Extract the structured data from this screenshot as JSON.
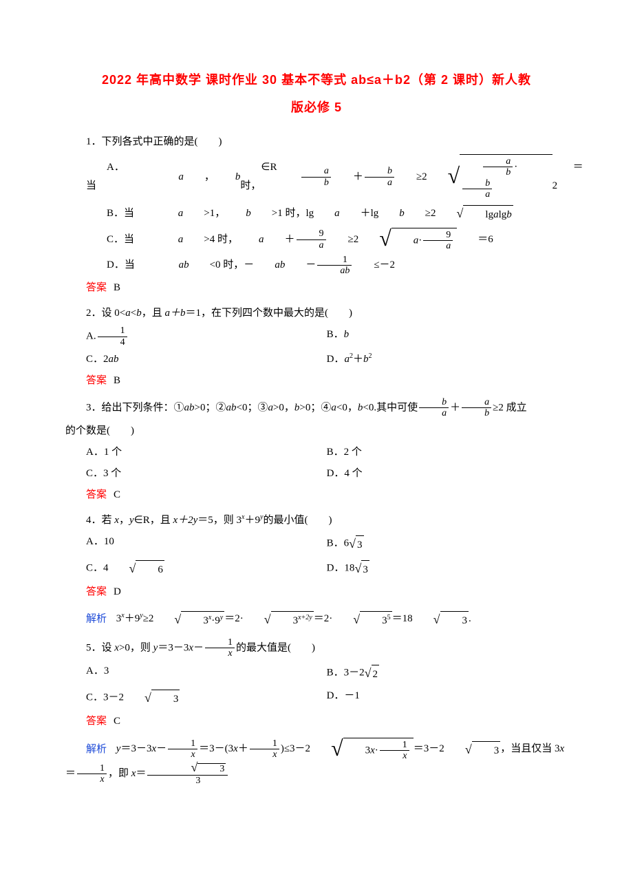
{
  "title_line1": "2022 年高中数学 课时作业 30 基本不等式 ab≤a＋b2（第 2 课时）新人教",
  "title_line2": "版必修 5",
  "q1": {
    "stem": "1．下列各式中正确的是(　　)",
    "optA_prefix": "A．当",
    "optA_ab": "a",
    "optA_b": "b",
    "optA_mid1": "∈R 时，",
    "optA_eq": "＝2",
    "optB_prefix": "B．当",
    "optB_a": "a",
    "optB_gt1": ">1，",
    "optB_b": "b",
    "optB_gt1b": ">1 时，lg",
    "optB_plus": "＋lg",
    "optB_ge": "≥2",
    "optB_sqrt": "lgalgb",
    "optC_prefix": "C．当",
    "optC_a": "a",
    "optC_gt4": ">4 时，",
    "optC_plus": "＋",
    "optC_ge": "≥2",
    "optC_eq": "＝6",
    "optD_prefix": "D．当",
    "optD_ab": "ab",
    "optD_lt0": "<0 时，－",
    "optD_minus": "－",
    "optD_le": "≤－2",
    "answer": "B"
  },
  "q2": {
    "stem_pre": "2．设 0<",
    "stem_a": "a",
    "stem_lt": "<",
    "stem_b": "b",
    "stem_mid": "，且 ",
    "stem_ab": "a＋b",
    "stem_eq": "＝1，在下列四个数中最大的是(　　)",
    "optA": "A.",
    "optB": "B．",
    "optB_val": "b",
    "optC": "C．2",
    "optC_val": "ab",
    "optD": "D．",
    "optD_val": "a²＋b²",
    "answer": "B"
  },
  "q3": {
    "stem_pre": "3．给出下列条件：①",
    "stem_1": "ab",
    "stem_gt0": ">0；②",
    "stem_2": "ab",
    "stem_lt0": "<0；③",
    "stem_3a": "a",
    "stem_3gt": ">0，",
    "stem_3b": "b",
    "stem_3gt2": ">0；④",
    "stem_4a": "a",
    "stem_4lt": "<0，",
    "stem_4b": "b",
    "stem_4lt2": "<0.其中可使",
    "stem_ge2": "≥2 成立",
    "stem_end": "的个数是(　　)",
    "optA": "A．1 个",
    "optB": "B．2 个",
    "optC": "C．3 个",
    "optD": "D．4 个",
    "answer": "C"
  },
  "q4": {
    "stem_pre": "4．若 ",
    "stem_x": "x",
    "stem_comma": "，",
    "stem_y": "y",
    "stem_r": "∈R，且 ",
    "stem_xy": "x＋2y",
    "stem_eq5": "＝5，则 3",
    "stem_plus": "＋9",
    "stem_min": "的最小值(　　)",
    "optA": "A．10",
    "optB": "B．6",
    "optC": "C．4",
    "optD": "D．18",
    "sqrt3": "3",
    "sqrt6": "6",
    "answer": "D",
    "analysis_pre": "3",
    "analysis_1": "＋9",
    "analysis_2": "≥2",
    "analysis_3": "3",
    "analysis_4": "·9",
    "analysis_5": "＝2·",
    "analysis_6": "3",
    "analysis_7": "＝2·",
    "analysis_8": "3",
    "analysis_9": "＝18",
    "analysis_end": "."
  },
  "q5": {
    "stem_pre": "5．设 ",
    "stem_x": "x",
    "stem_gt0": ">0，则 ",
    "stem_y": "y",
    "stem_eq": "＝3－3",
    "stem_minus": "－",
    "stem_max": "的最大值是(　　)",
    "optA": "A．3",
    "optB": "B．3－2",
    "sqrt2": "2",
    "optC": "C．3－2",
    "sqrt3": "3",
    "optD": "D．－1",
    "answer": "C",
    "analysis_y": "y",
    "analysis_eq": "＝3－3",
    "analysis_m1": "－",
    "analysis_eq2": "＝3－(3",
    "analysis_plus": "＋",
    "analysis_p2": ")≤3－2",
    "analysis_eq3": "＝3－2",
    "analysis_when": "，当且仅当 3",
    "analysis_eq4": "＝",
    "analysis_ji": "，即 ",
    "analysis_xeq": "＝"
  },
  "labels": {
    "answer": "答案",
    "analysis": "解析"
  }
}
